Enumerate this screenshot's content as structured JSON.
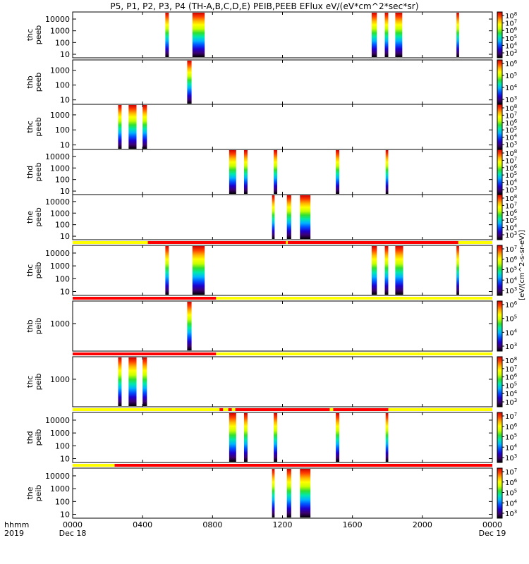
{
  "title": "P5, P1, P2, P3, P4 (TH-A,B,C,D,E) PEIB,PEEB EFlux eV/(eV*cm^2*sec*sr)",
  "colorbar_label": "[eV/(cm^2-s-sr-eV)]",
  "colors": {
    "spectrum": [
      "#000000",
      "#3b0070",
      "#1e00d0",
      "#0050ff",
      "#00b4ff",
      "#00e8b0",
      "#30e030",
      "#c8ff00",
      "#ffff00",
      "#ffb000",
      "#ff4000",
      "#d00000"
    ],
    "mode_red": "#ff0000",
    "mode_yellow": "#ffff00"
  },
  "chart_data": {
    "type": "heatmap",
    "x_axis": {
      "row_labels": [
        "hhmm",
        "2019"
      ],
      "ticks": [
        "0000",
        "0400",
        "0800",
        "1200",
        "1600",
        "2000",
        "0000"
      ],
      "date_labels": [
        "Dec 18",
        "Dec 19"
      ],
      "range_hours": [
        0,
        24
      ]
    },
    "panels": [
      {
        "label": [
          "thc",
          "peeb"
        ],
        "yscale": "log",
        "yticks": [
          "10",
          "100",
          "1000",
          "10000"
        ],
        "yrange": [
          5,
          40000
        ],
        "cbar_ticks": [
          "10^8",
          "10^7",
          "10^6",
          "10^5",
          "10^4",
          "10^3"
        ],
        "spectra": [
          [
            5.3,
            5.5
          ],
          [
            6.85,
            7.55
          ],
          [
            17.1,
            17.4
          ],
          [
            17.85,
            18.05
          ],
          [
            18.45,
            18.85
          ],
          [
            21.95,
            22.1
          ]
        ],
        "mode_bar": null
      },
      {
        "label": [
          "thb",
          "peeb"
        ],
        "yscale": "log",
        "yticks": [
          "10",
          "100",
          "1000"
        ],
        "yrange": [
          5,
          5000
        ],
        "cbar_ticks": [
          "10^6",
          "10^5",
          "10^4",
          "10^3"
        ],
        "spectra": [
          [
            6.55,
            6.8
          ]
        ],
        "mode_bar": null
      },
      {
        "label": [
          "thc",
          "peeb"
        ],
        "yscale": "log",
        "yticks": [
          "10",
          "100",
          "1000"
        ],
        "yrange": [
          5,
          5000
        ],
        "cbar_ticks": [
          "10^8",
          "10^7",
          "10^6",
          "10^5",
          "10^4",
          "10^3"
        ],
        "spectra": [
          [
            2.6,
            2.8
          ],
          [
            3.2,
            3.65
          ],
          [
            4.0,
            4.25
          ]
        ],
        "mode_bar": null
      },
      {
        "label": [
          "thd",
          "peeb"
        ],
        "yscale": "log",
        "yticks": [
          "10",
          "100",
          "1000",
          "10000"
        ],
        "yrange": [
          5,
          40000
        ],
        "cbar_ticks": [
          "10^8",
          "10^7",
          "10^6",
          "10^5",
          "10^4",
          "10^3"
        ],
        "spectra": [
          [
            8.95,
            9.35
          ],
          [
            9.8,
            10.0
          ],
          [
            11.5,
            11.7
          ],
          [
            15.05,
            15.25
          ],
          [
            17.9,
            18.05
          ]
        ],
        "mode_bar": null
      },
      {
        "label": [
          "the",
          "peeb"
        ],
        "yscale": "log",
        "yticks": [
          "10",
          "100",
          "1000",
          "10000"
        ],
        "yrange": [
          5,
          40000
        ],
        "cbar_ticks": [
          "10^8",
          "10^7",
          "10^6",
          "10^5",
          "10^4",
          "10^3"
        ],
        "spectra": [
          [
            11.4,
            11.55
          ],
          [
            12.25,
            12.5
          ],
          [
            13.0,
            13.6
          ]
        ],
        "mode_bar": null
      },
      {
        "label": [
          "thc",
          "peib"
        ],
        "yscale": "log",
        "yticks": [
          "10",
          "100",
          "1000",
          "10000"
        ],
        "yrange": [
          5,
          40000
        ],
        "cbar_ticks": [
          "10^7",
          "10^6",
          "10^5",
          "10^4",
          "10^3"
        ],
        "spectra": [
          [
            5.3,
            5.5
          ],
          [
            6.85,
            7.55
          ],
          [
            17.1,
            17.4
          ],
          [
            17.85,
            18.05
          ],
          [
            18.45,
            18.9
          ],
          [
            21.95,
            22.1
          ]
        ],
        "mode_bar": {
          "base": "yellow",
          "red": [
            [
              4.3,
              12.2
            ],
            [
              12.3,
              22.05
            ]
          ]
        }
      },
      {
        "label": [
          "thb",
          "peib"
        ],
        "yscale": "log",
        "yticks": [
          "1000"
        ],
        "yrange": [
          60,
          10000
        ],
        "cbar_ticks": [
          "10^6",
          "10^5",
          "10^4",
          "10^3"
        ],
        "spectra": [
          [
            6.55,
            6.8
          ]
        ],
        "mode_bar": {
          "base": "yellow",
          "red": [
            [
              0,
              8.2
            ]
          ]
        }
      },
      {
        "label": [
          "thc",
          "peib"
        ],
        "yscale": "log",
        "yticks": [
          "1000"
        ],
        "yrange": [
          60,
          10000
        ],
        "cbar_ticks": [
          "10^8",
          "10^7",
          "10^6",
          "10^5",
          "10^4",
          "10^3"
        ],
        "spectra": [
          [
            2.6,
            2.8
          ],
          [
            3.2,
            3.65
          ],
          [
            4.0,
            4.25
          ]
        ],
        "mode_bar": {
          "base": "red",
          "red": [],
          "yellow": [
            [
              8.2,
              24
            ]
          ]
        }
      },
      {
        "label": [
          "thd",
          "peib"
        ],
        "yscale": "log",
        "yticks": [
          "10",
          "100",
          "1000",
          "10000"
        ],
        "yrange": [
          5,
          40000
        ],
        "cbar_ticks": [
          "10^7",
          "10^6",
          "10^5",
          "10^4",
          "10^3"
        ],
        "spectra": [
          [
            8.95,
            9.35
          ],
          [
            9.8,
            10.0
          ],
          [
            11.5,
            11.7
          ],
          [
            15.05,
            15.25
          ],
          [
            17.9,
            18.05
          ]
        ],
        "mode_bar": {
          "base": "yellow",
          "red": [
            [
              8.4,
              8.6
            ],
            [
              8.9,
              9.1
            ],
            [
              9.3,
              14.7
            ],
            [
              14.9,
              18.05
            ]
          ]
        }
      },
      {
        "label": [
          "the",
          "peib"
        ],
        "yscale": "log",
        "yticks": [
          "10",
          "100",
          "1000",
          "10000"
        ],
        "yrange": [
          5,
          40000
        ],
        "cbar_ticks": [
          "10^7",
          "10^6",
          "10^5",
          "10^4",
          "10^3"
        ],
        "spectra": [
          [
            11.4,
            11.55
          ],
          [
            12.25,
            12.5
          ],
          [
            13.0,
            13.6
          ]
        ],
        "mode_bar": {
          "base": "yellow",
          "red": [
            [
              2.4,
              24
            ]
          ]
        }
      }
    ]
  }
}
